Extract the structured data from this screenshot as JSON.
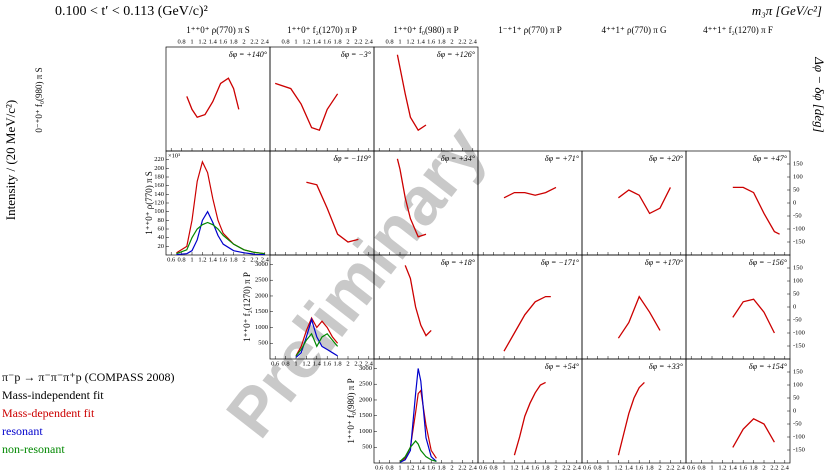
{
  "title": "0.100 < t′ < 0.113 (GeV/c)²",
  "mass_label": "m₃π  [GeV/c²]",
  "left_axis_label": "Intensity / (20 MeV/c²)",
  "right_axis_label": "Δφ − δφ [deg]",
  "watermark": "Preliminary",
  "legend": {
    "reaction": "π⁻p → π⁻π⁻π⁺p (COMPASS 2008)",
    "items": [
      {
        "name": "Mass-independent fit",
        "color": "#000000"
      },
      {
        "name": "Mass-dependent fit",
        "color": "#cc0000"
      },
      {
        "name": "resonant",
        "color": "#0000cc"
      },
      {
        "name": "non-resonant",
        "color": "#008800"
      }
    ]
  },
  "columns": [
    "1⁺⁺0⁺ ρ(770) π S",
    "1⁺⁺0⁺ f₂(1270) π P",
    "1⁺⁺0⁺ f₀(980) π P",
    "1⁻⁺1⁺ ρ(770) π P",
    "4⁺⁺1⁺ ρ(770) π G",
    "4⁺⁺1⁺ f₂(1270) π F"
  ],
  "xlim": [
    0.5,
    2.5
  ],
  "xticks": [
    0.6,
    0.8,
    1,
    1.2,
    1.4,
    1.6,
    1.8,
    2,
    2.2,
    2.4
  ],
  "phase_ylim": [
    -200,
    200
  ],
  "phase_yticks": [
    150,
    100,
    50,
    0,
    -50,
    -100,
    -150
  ],
  "rows": [
    {
      "label": "0⁻⁺0⁺ f₀(980) π S",
      "panels": [
        {
          "kind": "phase",
          "offset_label": "δφ = +140°",
          "fit": {
            "x": [
              0.9,
              1.0,
              1.1,
              1.25,
              1.4,
              1.55,
              1.7,
              1.8,
              1.9
            ],
            "values": [
              10,
              -40,
              -70,
              -60,
              -10,
              60,
              80,
              40,
              -40
            ]
          }
        },
        {
          "kind": "phase",
          "offset_label": "δφ = −3°",
          "fit": {
            "x": [
              0.6,
              0.9,
              1.1,
              1.3,
              1.45,
              1.6,
              1.8
            ],
            "values": [
              60,
              40,
              -20,
              -110,
              -120,
              -40,
              20
            ]
          }
        },
        {
          "kind": "phase",
          "offset_label": "δφ = +126°",
          "fit": {
            "x": [
              0.95,
              1.0,
              1.1,
              1.2,
              1.35,
              1.5
            ],
            "values": [
              170,
              120,
              20,
              -70,
              -120,
              -100
            ]
          }
        }
      ]
    },
    {
      "label": "1⁺⁺0⁺ ρ(770) π S",
      "panels": [
        {
          "kind": "intensity",
          "ylim": [
            0,
            240
          ],
          "yticks": [
            20,
            40,
            60,
            80,
            100,
            120,
            140,
            160,
            180,
            200,
            220
          ],
          "scale_label": "×10³",
          "x": [
            0.7,
            0.9,
            1.0,
            1.1,
            1.2,
            1.3,
            1.4,
            1.5,
            1.6,
            1.8,
            2.0,
            2.2,
            2.4
          ],
          "series": [
            {
              "color": "#cc0000",
              "values": [
                5,
                20,
                80,
                170,
                215,
                190,
                130,
                80,
                50,
                25,
                12,
                6,
                3
              ]
            },
            {
              "color": "#0000cc",
              "values": [
                1,
                3,
                10,
                35,
                80,
                100,
                75,
                45,
                25,
                10,
                5,
                2,
                1
              ]
            },
            {
              "color": "#008800",
              "values": [
                3,
                12,
                40,
                60,
                70,
                75,
                70,
                60,
                45,
                25,
                12,
                6,
                3
              ]
            }
          ]
        },
        {
          "kind": "phase",
          "offset_label": "δφ = −119°",
          "fit": {
            "x": [
              1.2,
              1.4,
              1.6,
              1.8,
              2.0,
              2.2
            ],
            "values": [
              80,
              70,
              -20,
              -120,
              -150,
              -140
            ]
          }
        },
        {
          "kind": "phase",
          "offset_label": "δφ = +34°",
          "fit": {
            "x": [
              0.95,
              1.0,
              1.1,
              1.2,
              1.35,
              1.5
            ],
            "values": [
              170,
              130,
              20,
              -60,
              -130,
              -120
            ]
          }
        },
        {
          "kind": "phase",
          "offset_label": "δφ = +71°",
          "fit": {
            "x": [
              1.0,
              1.2,
              1.4,
              1.6,
              1.8,
              2.0
            ],
            "values": [
              20,
              40,
              40,
              30,
              40,
              60
            ]
          }
        },
        {
          "kind": "phase",
          "offset_label": "δφ = +20°",
          "fit": {
            "x": [
              1.2,
              1.4,
              1.6,
              1.8,
              2.0,
              2.2
            ],
            "values": [
              20,
              50,
              30,
              -40,
              -20,
              60
            ]
          }
        },
        {
          "kind": "phase",
          "offset_label": "δφ = +47°",
          "fit": {
            "x": [
              1.4,
              1.6,
              1.8,
              2.0,
              2.2,
              2.3
            ],
            "values": [
              60,
              60,
              40,
              -40,
              -110,
              -120
            ]
          }
        }
      ]
    },
    {
      "label": "1⁺⁺0⁺ f₂(1270) π P",
      "panels": [
        {
          "kind": "intensity",
          "ylim": [
            0,
            3300
          ],
          "yticks": [
            500,
            1000,
            1500,
            2000,
            2500,
            3000
          ],
          "x": [
            1.0,
            1.1,
            1.2,
            1.3,
            1.4,
            1.5,
            1.6,
            1.7,
            1.8
          ],
          "series": [
            {
              "color": "#cc0000",
              "values": [
                100,
                400,
                900,
                1300,
                1000,
                1200,
                1000,
                700,
                500
              ]
            },
            {
              "color": "#0000cc",
              "values": [
                50,
                200,
                700,
                1250,
                700,
                400,
                300,
                200,
                100
              ]
            },
            {
              "color": "#008800",
              "values": [
                100,
                300,
                600,
                800,
                400,
                700,
                800,
                600,
                400
              ]
            }
          ]
        },
        {
          "kind": "phase",
          "offset_label": "δφ = +18°",
          "fit": {
            "x": [
              1.1,
              1.2,
              1.3,
              1.4,
              1.5,
              1.6
            ],
            "values": [
              160,
              110,
              0,
              -70,
              -110,
              -90
            ]
          }
        },
        {
          "kind": "phase",
          "offset_label": "δφ = −171°",
          "fit": {
            "x": [
              1.0,
              1.2,
              1.4,
              1.6,
              1.8,
              1.9
            ],
            "values": [
              -170,
              -100,
              -30,
              20,
              40,
              40
            ]
          }
        },
        {
          "kind": "phase",
          "offset_label": "δφ = +170°",
          "fit": {
            "x": [
              1.2,
              1.4,
              1.6,
              1.8,
              2.0
            ],
            "values": [
              -120,
              -60,
              40,
              -20,
              -90
            ]
          }
        },
        {
          "kind": "phase",
          "offset_label": "δφ = −156°",
          "fit": {
            "x": [
              1.4,
              1.6,
              1.8,
              2.0,
              2.2
            ],
            "values": [
              -40,
              20,
              30,
              -20,
              -100
            ]
          }
        }
      ]
    },
    {
      "label": "1⁺⁺0⁺ f₀(980) π P",
      "panels": [
        {
          "kind": "intensity",
          "ylim": [
            0,
            3300
          ],
          "yticks": [
            500,
            1000,
            1500,
            2000,
            2500,
            3000
          ],
          "x": [
            1.0,
            1.1,
            1.2,
            1.3,
            1.35,
            1.4,
            1.5,
            1.6,
            1.7
          ],
          "series": [
            {
              "color": "#cc0000",
              "values": [
                50,
                150,
                500,
                1600,
                2200,
                2300,
                1200,
                400,
                150
              ]
            },
            {
              "color": "#0000cc",
              "values": [
                20,
                100,
                400,
                2200,
                3000,
                2600,
                800,
                200,
                50
              ]
            },
            {
              "color": "#008800",
              "values": [
                50,
                200,
                500,
                700,
                600,
                400,
                200,
                100,
                50
              ]
            }
          ]
        },
        {
          "kind": "phase",
          "offset_label": "δφ = +54°",
          "fit": {
            "x": [
              1.2,
              1.3,
              1.4,
              1.5,
              1.6,
              1.7,
              1.8
            ],
            "values": [
              -170,
              -100,
              -20,
              30,
              70,
              100,
              110
            ]
          }
        },
        {
          "kind": "phase",
          "offset_label": "δφ = +33°",
          "fit": {
            "x": [
              1.2,
              1.3,
              1.4,
              1.5,
              1.6,
              1.7
            ],
            "values": [
              -170,
              -90,
              -10,
              50,
              90,
              110
            ]
          }
        },
        {
          "kind": "phase",
          "offset_label": "δφ = +154°",
          "fit": {
            "x": [
              1.4,
              1.6,
              1.8,
              2.0,
              2.2
            ],
            "values": [
              -140,
              -70,
              -30,
              -50,
              -120
            ]
          }
        }
      ]
    }
  ]
}
